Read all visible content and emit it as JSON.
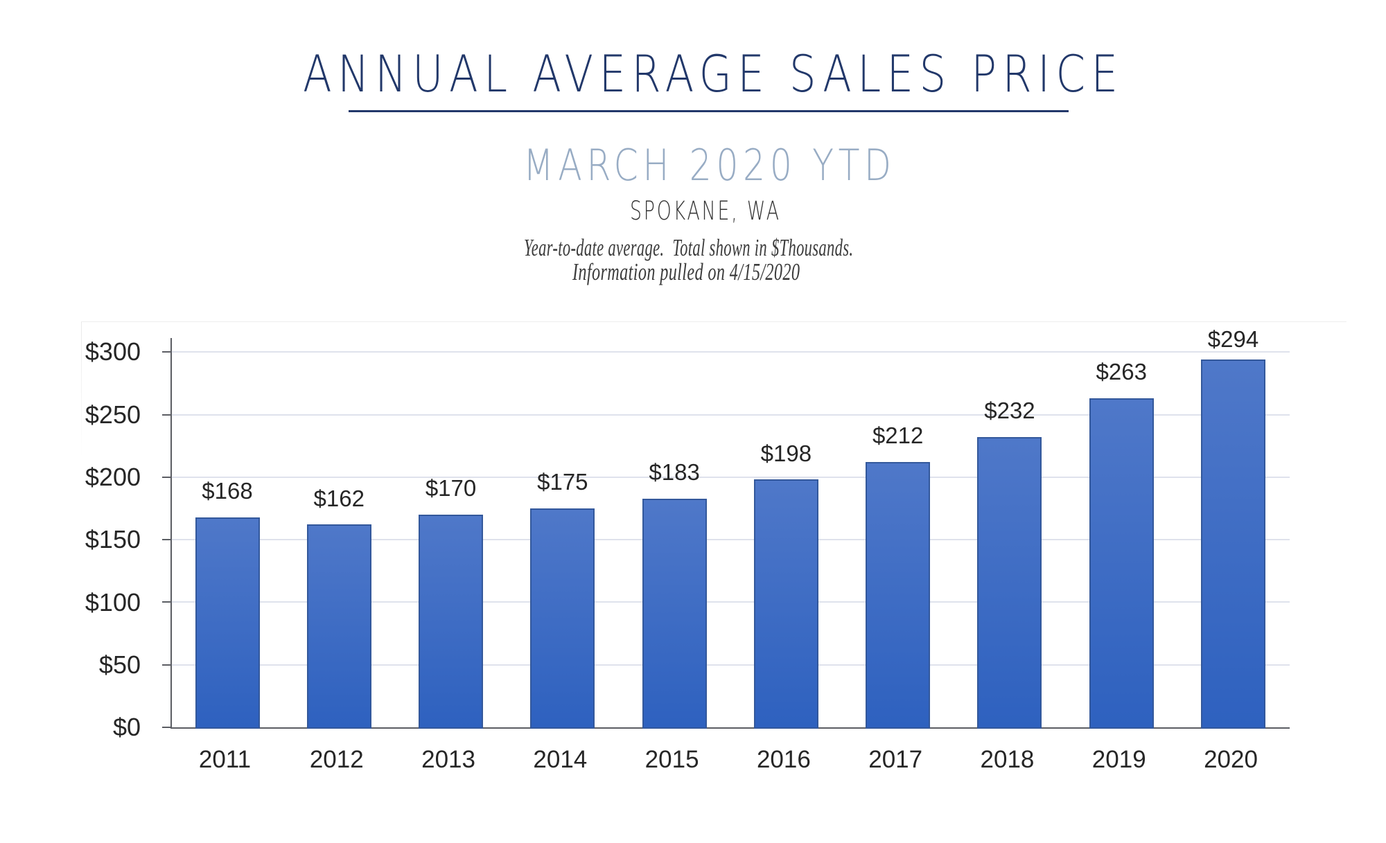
{
  "header": {
    "title": "ANNUAL AVERAGE SALES PRICE",
    "subtitle": "MARCH 2020 YTD",
    "location": "SPOKANE, WA",
    "note_line1": "Year-to-date average.  Total shown in $Thousands.",
    "note_line2": "Information pulled on 4/15/2020"
  },
  "colors": {
    "title_navy": "#22386a",
    "subtitle_blue": "#98acc4",
    "location_gray": "#333333",
    "note_gray": "#3b3b3b",
    "label_dark": "#262626",
    "axis_gray": "#5b5d63",
    "gridline": "#dfe2ec",
    "bar_top": "#4f78c9",
    "bar_bottom": "#2e61bf",
    "bar_border": "#33589b"
  },
  "chart_data": {
    "type": "bar",
    "title": "ANNUAL AVERAGE SALES PRICE",
    "subtitle": "MARCH 2020 YTD",
    "region": "SPOKANE, WA",
    "notes": [
      "Year-to-date average.  Total shown in $Thousands.",
      "Information pulled on 4/15/2020"
    ],
    "categories": [
      "2011",
      "2012",
      "2013",
      "2014",
      "2015",
      "2016",
      "2017",
      "2018",
      "2019",
      "2020"
    ],
    "values": [
      168,
      162,
      170,
      175,
      183,
      198,
      212,
      232,
      263,
      294
    ],
    "data_labels": [
      "$168",
      "$162",
      "$170",
      "$175",
      "$183",
      "$198",
      "$212",
      "$232",
      "$263",
      "$294"
    ],
    "xlabel": "",
    "ylabel": "",
    "unit": "$Thousands",
    "ylim": [
      0,
      300
    ],
    "y_tick_step": 50,
    "y_tick_labels": [
      "$0",
      "$50",
      "$100",
      "$150",
      "$200",
      "$250",
      "$300"
    ],
    "grid": true,
    "legend": false
  }
}
